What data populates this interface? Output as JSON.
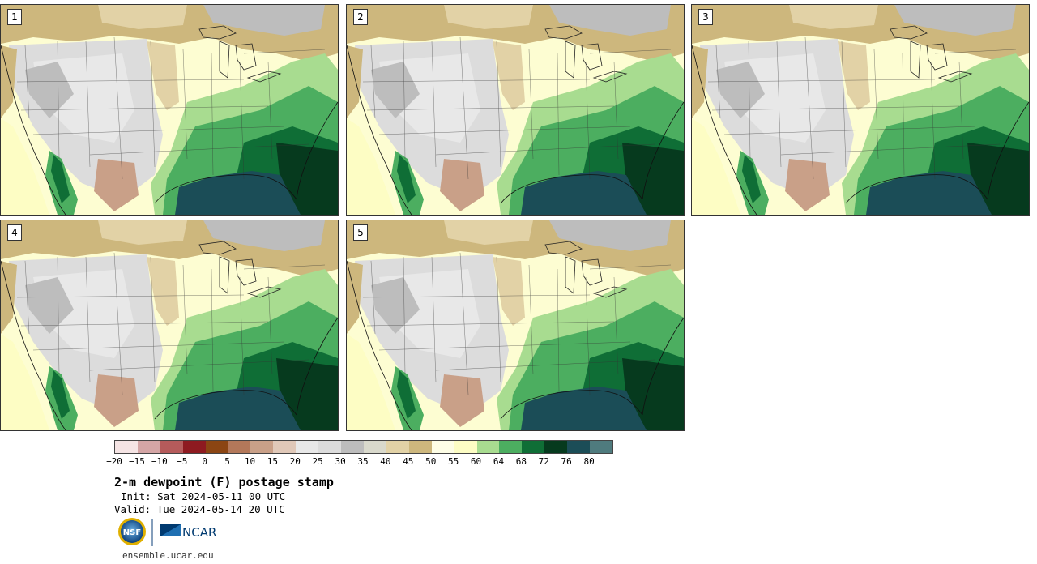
{
  "panels": [
    {
      "label": "1"
    },
    {
      "label": "2"
    },
    {
      "label": "3"
    },
    {
      "label": "4"
    },
    {
      "label": "5"
    }
  ],
  "colorbar": {
    "colors": [
      "#f5e4e4",
      "#d4a5a5",
      "#b55b5b",
      "#8e1a20",
      "#8b4513",
      "#b3785a",
      "#c9a088",
      "#e0c8b8",
      "#e8e8e8",
      "#dcdcdc",
      "#bdbdbd",
      "#d9d9cc",
      "#e2d2a6",
      "#cdb77d",
      "#fefee6",
      "#fdfdc4",
      "#a8dc90",
      "#4cae60",
      "#0f6e36",
      "#063a1e",
      "#1b4d57",
      "#4f7b7e"
    ],
    "tick_labels": [
      "−20",
      "−15",
      "−10",
      "−5",
      "0",
      "5",
      "10",
      "15",
      "20",
      "25",
      "30",
      "35",
      "40",
      "45",
      "50",
      "55",
      "60",
      "64",
      "68",
      "72",
      "76",
      "80"
    ]
  },
  "title": "2-m dewpoint (F) postage stamp",
  "init_label": "Init:",
  "init_value": "Sat 2024-05-11 00 UTC",
  "valid_label": "Valid:",
  "valid_value": "Tue 2024-05-14 20 UTC",
  "logos": {
    "nsf": "NSF",
    "ncar": "NCAR"
  },
  "footer": "ensemble.ucar.edu"
}
